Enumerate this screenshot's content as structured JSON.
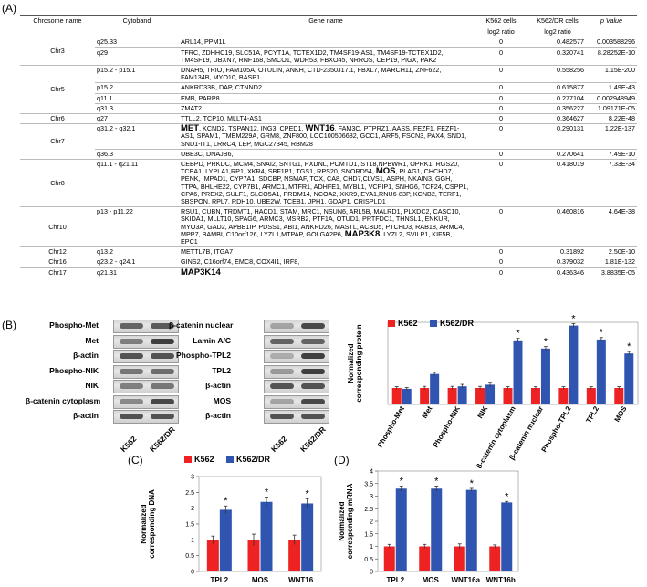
{
  "panel_labels": {
    "a": "(A)",
    "b": "(B)",
    "c": "(C)",
    "d": "(D)"
  },
  "table": {
    "headers": {
      "chr": "Chrosome name",
      "cytoband": "Cytoband",
      "gene": "Gene name",
      "k562": "K562 cells",
      "k562dr": "K562/DR cells",
      "pval": "p Value",
      "log2_a": "log2 ratio",
      "log2_b": "log2 ratio"
    },
    "rows": [
      {
        "chr": "Chr3",
        "band": "q25.33",
        "genes": "ARL14, PPM1L",
        "big": "",
        "genes2": "",
        "big2": "",
        "genes3": "",
        "a": "0",
        "b": "0.482577",
        "p": "0.003588296"
      },
      {
        "chr": "",
        "band": "q29",
        "genes": "TFRC, ZDHHC19, SLC51A, PCYT1A, TCTEX1D2, TM4SF19-AS1, TM4SF19-TCTEX1D2, TM4SF19, UBXN7, RNF168, SMCO1, WDR53, FBXO45, NRROS, CEP19, PIGX, PAK2",
        "big": "",
        "genes2": "",
        "big2": "",
        "genes3": "",
        "a": "0",
        "b": "0.320741",
        "p": "8.28252E-10"
      },
      {
        "chr": "Chr5",
        "band": "p15.2 - p15.1",
        "genes": "DNAH5, TRIO, FAM105A, OTULIN, ANKH, CTD-2350J17.1, FBXL7, MARCH11, ZNF622, FAM134B, MYO10, BASP1",
        "big": "",
        "genes2": "",
        "big2": "",
        "genes3": "",
        "a": "0",
        "b": "0.558256",
        "p": "1.15E-200"
      },
      {
        "chr": "",
        "band": "p15.2",
        "genes": "ANKRD33B, DAP, CTNND2",
        "big": "",
        "genes2": "",
        "big2": "",
        "genes3": "",
        "a": "0",
        "b": "0.615877",
        "p": "1.49E-43"
      },
      {
        "chr": "",
        "band": "q11.1",
        "genes": "EMB, PARP8",
        "big": "",
        "genes2": "",
        "big2": "",
        "genes3": "",
        "a": "0",
        "b": "0.277104",
        "p": "0.002948949"
      },
      {
        "chr": "",
        "band": "q31.3",
        "genes": "ZMAT2",
        "big": "",
        "genes2": "",
        "big2": "",
        "genes3": "",
        "a": "0",
        "b": "0.356227",
        "p": "1.09171E-05"
      },
      {
        "chr": "Chr6",
        "band": "q27",
        "genes": "TTLL2, TCP10, MLLT4-AS1",
        "big": "",
        "genes2": "",
        "big2": "",
        "genes3": "",
        "a": "0",
        "b": "0.364627",
        "p": "8.22E-48"
      },
      {
        "chr": "Chr7",
        "band": "q31.2 - q32.1",
        "genes": "",
        "big": "MET",
        "genes2": ", KCND2, TSPAN12, ING3, CPED1, ",
        "big2": "WNT16",
        "genes3": ", FAM3C, PTPRZ1, AASS, FEZF1, FEZF1-AS1, SPAM1, TMEM229A, GRM8, ZNF800, LOC100506682, GCC1, ARF5, FSCN3, PAX4, SND1, SND1-IT1, LRRC4, LEP, MGC27345, RBM28",
        "a": "0",
        "b": "0.290131",
        "p": "1.22E-137"
      },
      {
        "chr": "",
        "band": "q36.3",
        "genes": "UBE3C, DNAJB6,",
        "big": "",
        "genes2": "",
        "big2": "",
        "genes3": "",
        "a": "0",
        "b": "0.270641",
        "p": "7.49E-10"
      },
      {
        "chr": "Chr8",
        "band": "q11.1 - q21.11",
        "genes": "CEBPD, PRKDC, MCM4, SNAI2, SNTG1, PXDNL, PCMTD1, ST18,NPBWR1, OPRK1, RGS20, TCEA1, LYPLA1,RP1, XKR4, SBF1P1, TGS1, RPS20, SNORD54, ",
        "big": "MOS",
        "genes2": ", PLAG1, CHCHD7, PENK, IMPAD1, CYP7A1, SDCBP, NSMAF, TOX, CA8, CHD7,CLVS1, ASPH, NKAIN3, GGH, TTPA, BHLHE22, CYP7B1, ARMC1, MTFR1, ADHFE1, MYBL1, VCPIP1, SNHG6, TCF24, CSPP1, CPA6, PREX2, SULF1, SLCO5A1, PRDM14, NCOA2, XKR9, EYA1,RNU6-83P, KCNB2, TERF1, SBSPON, RPL7, RDH10, UBE2W, TCEB1, JPH1, GDAP1, CRISPLD1",
        "big2": "",
        "genes3": "",
        "a": "0",
        "b": "0.418019",
        "p": "7.33E-34"
      },
      {
        "chr": "Chr10",
        "band": "p13 - p11.22",
        "genes": "RSU1, CUBN, TRDMT1, HACD1, STAM, MRC1, NSUN6, ARL5B, MALRD1, PLXDC2, CASC10, SKIDA1, MLLT10, SPAG6, ARMC3, MSRB2, PTF1A, OTUD1, PRTFDC1, THNSL1, ENKUR, MYO3A, GAD2, APBB1IP, PDSS1, ABI1, ANKRD26, MASTL, ACBD5, PTCHD3, RAB18, ARMC4, MPP7, BAMBI, C10orf126, LYZL1,MTPAP, GOLGA2P6, ",
        "big": "MAP3K8",
        "genes2": ", LYZL2, SVILP1, KIF5B, EPC1",
        "big2": "",
        "genes3": "",
        "a": "0",
        "b": "0.460816",
        "p": "4.64E-38"
      },
      {
        "chr": "Chr12",
        "band": "q13.2",
        "genes": "METTL7B, ITGA7",
        "big": "",
        "genes2": "",
        "big2": "",
        "genes3": "",
        "a": "0",
        "b": "0.31892",
        "p": "2.50E-10"
      },
      {
        "chr": "Chr16",
        "band": "q23.2 - q24.1",
        "genes": "GINS2, C16orf74, EMC8, COX4I1, IRF8,",
        "big": "",
        "genes2": "",
        "big2": "",
        "genes3": "",
        "a": "0",
        "b": "0.379032",
        "p": "1.81E-132"
      },
      {
        "chr": "Chr17",
        "band": "q21.31",
        "genes": "",
        "big": "MAP3K14",
        "genes2": "",
        "big2": "",
        "genes3": "",
        "a": "0",
        "b": "0.436346",
        "p": "3.8835E-05"
      }
    ]
  },
  "blots": {
    "left_labels": [
      "Phospho-Met",
      "Met",
      "β-actin",
      "Phospho-NIK",
      "NIK",
      "β-catenin cytoplasm",
      "β-actin"
    ],
    "right_labels": [
      "β-catenin nuclear",
      "Lamin A/C",
      "Phospho-TPL2",
      "TPL2",
      "β-actin",
      "MOS",
      "β-actin"
    ],
    "lanes": [
      "K562",
      "K562/DR"
    ],
    "left_intensity": [
      [
        0.7,
        0.75
      ],
      [
        0.55,
        0.9
      ],
      [
        0.8,
        0.8
      ],
      [
        0.6,
        0.65
      ],
      [
        0.55,
        0.6
      ],
      [
        0.5,
        0.85
      ],
      [
        0.8,
        0.8
      ]
    ],
    "right_intensity": [
      [
        0.35,
        0.85
      ],
      [
        0.7,
        0.7
      ],
      [
        0.3,
        0.9
      ],
      [
        0.4,
        0.9
      ],
      [
        0.8,
        0.8
      ],
      [
        0.35,
        0.85
      ],
      [
        0.8,
        0.8
      ]
    ]
  },
  "colors": {
    "k562": "#ee2222",
    "k562dr": "#2f55b0"
  },
  "chart_data": [
    {
      "id": "B",
      "type": "bar",
      "title": "",
      "xlabel": "",
      "ylabel": "Normalized corresponding protein",
      "ylim": [
        0,
        5
      ],
      "yticks": [],
      "grid": false,
      "legend": "top",
      "categories": [
        "Phospho-Met",
        "Met",
        "Phospho-NIK",
        "NIK",
        "β-catenin cytoplasm",
        "β-catenin nuclear",
        "Phospho-TPL2",
        "TPL2",
        "MOS"
      ],
      "series": [
        {
          "name": "K562",
          "values": [
            1.0,
            1.0,
            1.0,
            1.0,
            1.0,
            1.0,
            1.0,
            1.0,
            1.0
          ],
          "errors": [
            0.08,
            0.1,
            0.1,
            0.1,
            0.08,
            0.08,
            0.08,
            0.08,
            0.08
          ]
        },
        {
          "name": "K562/DR",
          "values": [
            0.95,
            1.85,
            1.1,
            1.2,
            3.9,
            3.4,
            4.8,
            3.95,
            3.1
          ],
          "errors": [
            0.08,
            0.1,
            0.12,
            0.15,
            0.12,
            0.12,
            0.12,
            0.12,
            0.12
          ]
        }
      ],
      "annotations": [
        "",
        "",
        "",
        "",
        "*",
        "*",
        "*",
        "*",
        "*"
      ]
    },
    {
      "id": "C",
      "type": "bar",
      "title": "",
      "xlabel": "",
      "ylabel": "Normalized corresponding DNA",
      "ylim": [
        0,
        3
      ],
      "yticks": [
        0,
        0.5,
        1,
        1.5,
        2,
        2.5,
        3
      ],
      "grid": false,
      "legend": "top",
      "categories": [
        "TPL2",
        "MOS",
        "WNT16"
      ],
      "series": [
        {
          "name": "K562",
          "values": [
            1.0,
            1.0,
            1.0
          ],
          "errors": [
            0.12,
            0.18,
            0.15
          ]
        },
        {
          "name": "K562/DR",
          "values": [
            1.95,
            2.2,
            2.15
          ],
          "errors": [
            0.12,
            0.15,
            0.15
          ]
        }
      ],
      "annotations": [
        "*",
        "*",
        "*"
      ]
    },
    {
      "id": "D",
      "type": "bar",
      "title": "",
      "xlabel": "",
      "ylabel": "Normalized corresponding mRNA",
      "ylim": [
        0,
        4
      ],
      "yticks": [
        0,
        0.5,
        1,
        1.5,
        2,
        2.5,
        3,
        3.5,
        4
      ],
      "grid": false,
      "legend": "none",
      "categories": [
        "TPL2",
        "MOS",
        "WNT16a",
        "WNT16b"
      ],
      "series": [
        {
          "name": "K562",
          "values": [
            1.0,
            1.0,
            1.0,
            1.0
          ],
          "errors": [
            0.08,
            0.08,
            0.1,
            0.06
          ]
        },
        {
          "name": "K562/DR",
          "values": [
            3.3,
            3.3,
            3.25,
            2.75
          ],
          "errors": [
            0.1,
            0.1,
            0.06,
            0.04
          ]
        }
      ],
      "annotations": [
        "*",
        "*",
        "*",
        "*"
      ]
    }
  ]
}
